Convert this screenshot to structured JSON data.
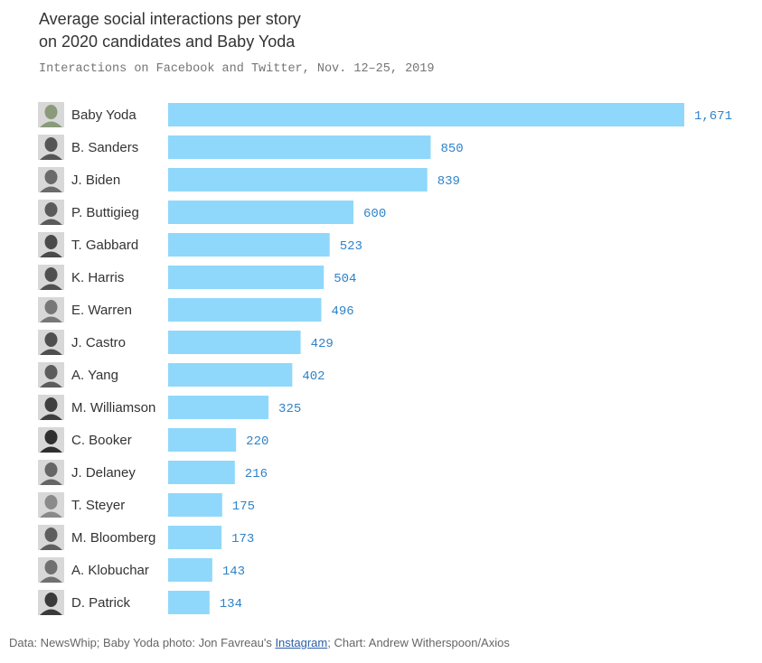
{
  "title_line1": "Average social interactions per story",
  "title_line2": "on 2020 candidates and Baby Yoda",
  "subtitle": "Interactions on Facebook and Twitter, Nov. 12–25, 2019",
  "footer": {
    "prefix": "Data: NewsWhip; Baby Yoda photo: Jon Favreau's ",
    "link": "Instagram",
    "suffix": "; Chart: Andrew Witherspoon/Axios"
  },
  "colors": {
    "bar": "#8fd8fb",
    "value_label": "#2f83c9",
    "name_label": "#333333"
  },
  "chart_data": {
    "type": "bar",
    "orientation": "horizontal",
    "categories": [
      "Baby Yoda",
      "B. Sanders",
      "J. Biden",
      "P. Buttigieg",
      "T. Gabbard",
      "K. Harris",
      "E. Warren",
      "J. Castro",
      "A. Yang",
      "M. Williamson",
      "C. Booker",
      "J. Delaney",
      "T. Steyer",
      "M. Bloomberg",
      "A. Klobuchar",
      "D. Patrick"
    ],
    "values": [
      1671,
      850,
      839,
      600,
      523,
      504,
      496,
      429,
      402,
      325,
      220,
      216,
      175,
      173,
      143,
      134
    ],
    "value_labels": [
      "1,671",
      "850",
      "839",
      "600",
      "523",
      "504",
      "496",
      "429",
      "402",
      "325",
      "220",
      "216",
      "175",
      "173",
      "143",
      "134"
    ],
    "title": "Average social interactions per story on 2020 candidates and Baby Yoda",
    "xlabel": "",
    "ylabel": "",
    "xlim": [
      0,
      1671
    ],
    "grid": false,
    "legend": "none"
  }
}
